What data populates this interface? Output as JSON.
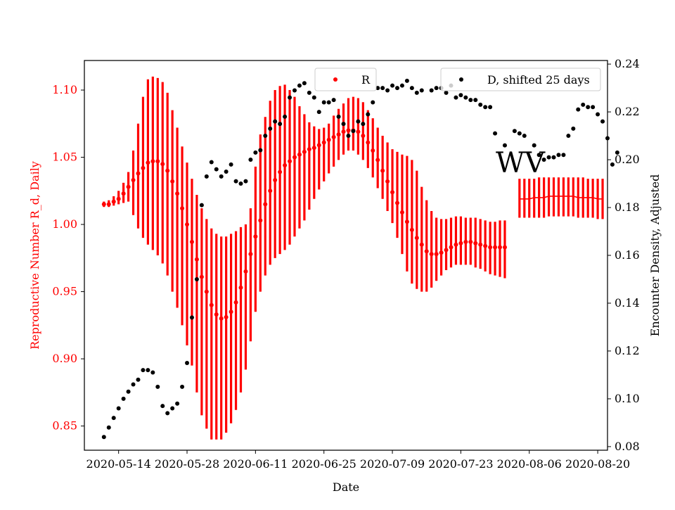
{
  "chart_data": {
    "type": "scatter",
    "xlabel": "Date",
    "ylabel_left": "Reproductive Number R_d, Daily",
    "ylabel_right": "Encounter Density, Adjusted",
    "annotation": "WV",
    "x_ticks": [
      "2020-05-14",
      "2020-05-28",
      "2020-06-11",
      "2020-06-25",
      "2020-07-09",
      "2020-07-23",
      "2020-08-06",
      "2020-08-20"
    ],
    "x_range": [
      "2020-05-07",
      "2020-08-22"
    ],
    "y_left_ticks": [
      "0.85",
      "0.90",
      "0.95",
      "1.00",
      "1.05",
      "1.10"
    ],
    "y_left_range": [
      0.832,
      1.122
    ],
    "y_right_ticks": [
      "0.08",
      "0.10",
      "0.12",
      "0.14",
      "0.16",
      "0.18",
      "0.20",
      "0.22",
      "0.24"
    ],
    "y_right_range": [
      0.0785,
      0.2415
    ],
    "colors": {
      "R": "#ff0000",
      "D": "#000000",
      "left_axis": "#ff0000",
      "right_axis": "#000000"
    },
    "legend_position": "top",
    "series": [
      {
        "name": "R",
        "axis": "left",
        "marker": "dot",
        "error_bars": true,
        "x_start": "2020-05-11",
        "step_days": 1,
        "values": [
          1.015,
          1.015,
          1.017,
          1.019,
          1.023,
          1.028,
          1.033,
          1.038,
          1.042,
          1.046,
          1.047,
          1.047,
          1.045,
          1.04,
          1.032,
          1.023,
          1.012,
          1.0,
          0.987,
          0.974,
          0.961,
          0.95,
          0.94,
          0.933,
          0.93,
          0.931,
          0.935,
          0.942,
          0.953,
          0.965,
          0.978,
          0.991,
          1.003,
          1.015,
          1.025,
          1.033,
          1.039,
          1.044,
          1.047,
          1.05,
          1.052,
          1.054,
          1.056,
          1.057,
          1.059,
          1.061,
          1.063,
          1.065,
          1.067,
          1.069,
          1.07,
          1.07,
          1.069,
          1.066,
          1.061,
          1.055,
          1.048,
          1.04,
          1.032,
          1.024,
          1.016,
          1.009,
          1.002,
          0.996,
          0.99,
          0.985,
          0.98,
          0.978,
          0.978,
          0.979,
          0.981,
          0.983,
          0.985,
          0.986,
          0.987,
          0.987,
          0.986,
          0.985,
          0.984,
          0.983,
          0.983,
          0.983,
          0.983
        ],
        "lower": [
          1.013,
          1.013,
          1.014,
          1.015,
          1.016,
          1.017,
          1.007,
          0.997,
          0.99,
          0.985,
          0.981,
          0.977,
          0.971,
          0.962,
          0.95,
          0.938,
          0.925,
          0.91,
          0.895,
          0.875,
          0.858,
          0.848,
          0.84,
          0.84,
          0.84,
          0.845,
          0.852,
          0.862,
          0.875,
          0.892,
          0.913,
          0.935,
          0.95,
          0.962,
          0.97,
          0.975,
          0.978,
          0.981,
          0.985,
          0.991,
          0.997,
          1.003,
          1.011,
          1.019,
          1.026,
          1.032,
          1.038,
          1.043,
          1.048,
          1.052,
          1.055,
          1.055,
          1.052,
          1.048,
          1.042,
          1.035,
          1.027,
          1.019,
          1.01,
          1.001,
          0.99,
          0.978,
          0.965,
          0.956,
          0.952,
          0.95,
          0.95,
          0.953,
          0.958,
          0.962,
          0.966,
          0.968,
          0.97,
          0.97,
          0.97,
          0.97,
          0.968,
          0.967,
          0.965,
          0.963,
          0.962,
          0.961,
          0.96
        ],
        "upper": [
          1.017,
          1.018,
          1.021,
          1.025,
          1.031,
          1.039,
          1.055,
          1.075,
          1.095,
          1.108,
          1.11,
          1.109,
          1.106,
          1.098,
          1.085,
          1.072,
          1.058,
          1.046,
          1.034,
          1.022,
          1.012,
          1.004,
          0.997,
          0.993,
          0.991,
          0.991,
          0.993,
          0.995,
          0.998,
          1.0,
          1.012,
          1.043,
          1.067,
          1.08,
          1.092,
          1.1,
          1.103,
          1.104,
          1.1,
          1.095,
          1.088,
          1.082,
          1.076,
          1.073,
          1.071,
          1.072,
          1.075,
          1.081,
          1.086,
          1.09,
          1.094,
          1.095,
          1.094,
          1.091,
          1.085,
          1.079,
          1.072,
          1.066,
          1.061,
          1.056,
          1.054,
          1.052,
          1.051,
          1.048,
          1.04,
          1.028,
          1.018,
          1.01,
          1.005,
          1.004,
          1.004,
          1.005,
          1.006,
          1.006,
          1.005,
          1.005,
          1.005,
          1.004,
          1.003,
          1.002,
          1.002,
          1.003,
          1.003
        ]
      },
      {
        "name": "R",
        "axis": "left",
        "marker": "line",
        "error_bars": true,
        "x_start": "2020-08-04",
        "step_days": 1,
        "values": [
          1.019,
          1.019,
          1.019,
          1.02,
          1.02,
          1.02,
          1.021,
          1.021,
          1.021,
          1.021,
          1.021,
          1.021,
          1.02,
          1.02,
          1.02,
          1.02,
          1.019,
          1.019
        ],
        "lower": [
          1.005,
          1.005,
          1.005,
          1.005,
          1.005,
          1.005,
          1.006,
          1.006,
          1.006,
          1.006,
          1.006,
          1.006,
          1.005,
          1.005,
          1.005,
          1.005,
          1.004,
          1.004
        ],
        "upper": [
          1.034,
          1.034,
          1.034,
          1.034,
          1.035,
          1.035,
          1.035,
          1.035,
          1.035,
          1.035,
          1.035,
          1.035,
          1.035,
          1.035,
          1.034,
          1.034,
          1.034,
          1.034
        ]
      },
      {
        "name": "D, shifted 25 days",
        "axis": "right",
        "marker": "dot",
        "error_bars": false,
        "x_start": "2020-05-11",
        "step_days": 1,
        "values": [
          0.084,
          0.088,
          0.092,
          0.096,
          0.1,
          0.103,
          0.106,
          0.108,
          0.112,
          0.112,
          0.111,
          0.105,
          0.097,
          0.094,
          0.096,
          0.098,
          0.105,
          0.115,
          0.134,
          0.15,
          0.181,
          0.193,
          0.199,
          0.196,
          0.193,
          0.195,
          0.198,
          0.191,
          0.19,
          0.191,
          0.2,
          0.203,
          0.204,
          0.21,
          0.213,
          0.216,
          0.215,
          0.218,
          0.226,
          0.229,
          0.231,
          0.232,
          0.228,
          0.226,
          0.22,
          0.224,
          0.224,
          0.225,
          0.218,
          0.215,
          0.21,
          0.212,
          0.216,
          0.215,
          0.219,
          0.224,
          0.23,
          0.23,
          0.229,
          0.231,
          0.23,
          0.231,
          0.233,
          0.23,
          0.228,
          0.229,
          0.229,
          0.23,
          0.23,
          0.228,
          0.231,
          0.226,
          0.227,
          0.226,
          0.225,
          0.225,
          0.223,
          0.222,
          0.222,
          0.211,
          0.206,
          0.212,
          0.211,
          0.21,
          0.206,
          0.202,
          0.2,
          0.201,
          0.201,
          0.202,
          0.202,
          0.21,
          0.213,
          0.221,
          0.223,
          0.222,
          0.222,
          0.219,
          0.216,
          0.209,
          0.198,
          0.203
        ],
        "gaps": [
          66,
          81,
          83,
          87
        ]
      }
    ]
  }
}
